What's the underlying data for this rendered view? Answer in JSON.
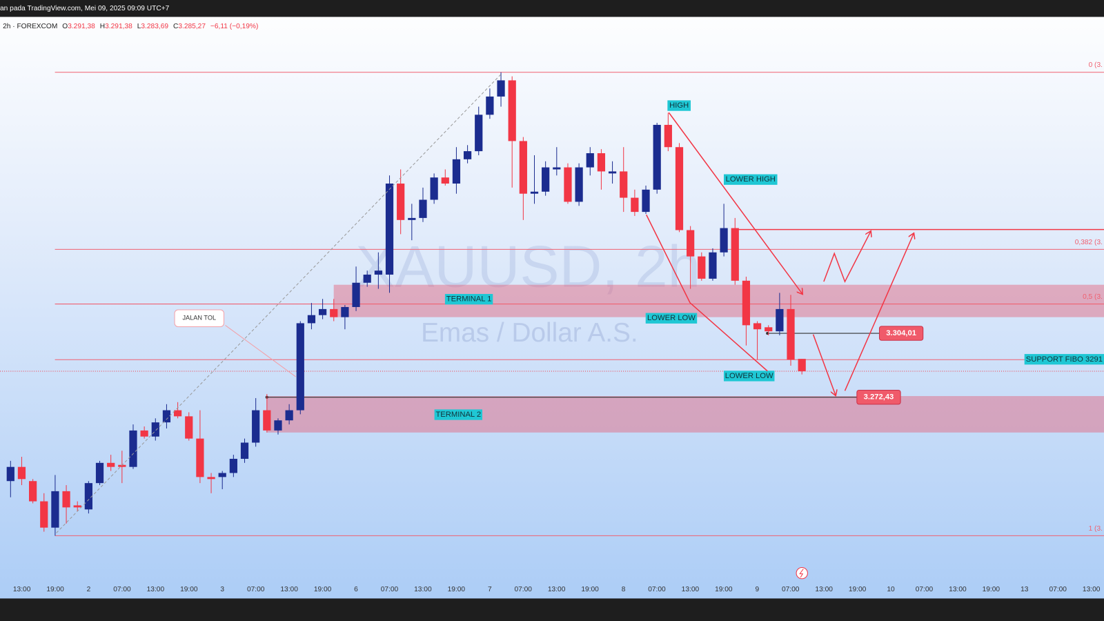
{
  "header": {
    "caption": "an pada TradingView.com, Mei 09, 2025 09:09 UTC+7",
    "symbol": "2h · FOREXCOM",
    "ohlc": [
      {
        "name": "O",
        "text": "3.291,38"
      },
      {
        "name": "H",
        "text": "3.291,38"
      },
      {
        "name": "L",
        "text": "3.283,69"
      },
      {
        "name": "C",
        "text": "3.285,27"
      }
    ],
    "change": "−6,11 (−0,19%)"
  },
  "chart_data": {
    "type": "candlestick",
    "title": "XAUUSD, 2h",
    "subtitle": "Emas / Dollar A.S.",
    "up_color": "#1b2c8f",
    "down_color": "#f23645",
    "ylim": [
      3173,
      3460
    ],
    "categories": [
      "13:00",
      "19:00",
      "2",
      "07:00",
      "13:00",
      "19:00",
      "3",
      "07:00",
      "13:00",
      "19:00",
      "6",
      "07:00",
      "13:00",
      "19:00",
      "7",
      "07:00",
      "13:00",
      "19:00",
      "8",
      "07:00",
      "13:00",
      "19:00",
      "9",
      "07:00",
      "13:00",
      "19:00",
      "10",
      "07:00",
      "13:00",
      "19:00",
      "13",
      "07:00",
      "13:00"
    ],
    "ohlc": [
      [
        3231,
        3241,
        3223,
        3238
      ],
      [
        3238,
        3243,
        3229,
        3232
      ],
      [
        3231,
        3232,
        3220,
        3221
      ],
      [
        3221,
        3225,
        3206,
        3208
      ],
      [
        3208,
        3234,
        3204,
        3226
      ],
      [
        3226,
        3229,
        3210,
        3218
      ],
      [
        3219,
        3221,
        3216,
        3218
      ],
      [
        3217,
        3231,
        3215,
        3230
      ],
      [
        3230,
        3241,
        3229,
        3240
      ],
      [
        3240,
        3244,
        3236,
        3238
      ],
      [
        3239,
        3246,
        3230,
        3238
      ],
      [
        3238,
        3259,
        3237,
        3256
      ],
      [
        3256,
        3258,
        3252,
        3253
      ],
      [
        3253,
        3262,
        3251,
        3260
      ],
      [
        3260,
        3269,
        3257,
        3266
      ],
      [
        3266,
        3270,
        3262,
        3263
      ],
      [
        3263,
        3265,
        3251,
        3252
      ],
      [
        3252,
        3266,
        3230,
        3233
      ],
      [
        3233,
        3235,
        3225,
        3232
      ],
      [
        3233,
        3236,
        3227,
        3235
      ],
      [
        3235,
        3244,
        3233,
        3242
      ],
      [
        3242,
        3252,
        3240,
        3250
      ],
      [
        3250,
        3272,
        3248,
        3266
      ],
      [
        3266,
        3274,
        3255,
        3256
      ],
      [
        3256,
        3262,
        3254,
        3261
      ],
      [
        3261,
        3269,
        3259,
        3266
      ],
      [
        3266,
        3310,
        3264,
        3309
      ],
      [
        3309,
        3319,
        3306,
        3313
      ],
      [
        3313,
        3321,
        3311,
        3316
      ],
      [
        3316,
        3321,
        3310,
        3312
      ],
      [
        3312,
        3318,
        3306,
        3317
      ],
      [
        3317,
        3337,
        3315,
        3329
      ],
      [
        3329,
        3335,
        3327,
        3333
      ],
      [
        3333,
        3344,
        3326,
        3335
      ],
      [
        3333,
        3382,
        3324,
        3378
      ],
      [
        3378,
        3385,
        3353,
        3360
      ],
      [
        3360,
        3368,
        3350,
        3361
      ],
      [
        3361,
        3376,
        3359,
        3370
      ],
      [
        3370,
        3383,
        3368,
        3381
      ],
      [
        3381,
        3385,
        3377,
        3378
      ],
      [
        3378,
        3396,
        3373,
        3390
      ],
      [
        3390,
        3397,
        3388,
        3394
      ],
      [
        3394,
        3416,
        3392,
        3412
      ],
      [
        3412,
        3425,
        3410,
        3421
      ],
      [
        3421,
        3433,
        3416,
        3429
      ],
      [
        3429,
        3431,
        3376,
        3399
      ],
      [
        3399,
        3401,
        3360,
        3373
      ],
      [
        3373,
        3392,
        3368,
        3374
      ],
      [
        3374,
        3389,
        3372,
        3386
      ],
      [
        3385,
        3396,
        3382,
        3386
      ],
      [
        3386,
        3388,
        3368,
        3369
      ],
      [
        3369,
        3388,
        3367,
        3386
      ],
      [
        3386,
        3396,
        3382,
        3393
      ],
      [
        3393,
        3395,
        3375,
        3384
      ],
      [
        3383,
        3389,
        3378,
        3384
      ],
      [
        3384,
        3396,
        3364,
        3371
      ],
      [
        3371,
        3375,
        3362,
        3364
      ],
      [
        3364,
        3377,
        3363,
        3375
      ],
      [
        3375,
        3408,
        3373,
        3407
      ],
      [
        3407,
        3413,
        3394,
        3396
      ],
      [
        3396,
        3398,
        3354,
        3355
      ],
      [
        3355,
        3357,
        3326,
        3342
      ],
      [
        3342,
        3344,
        3330,
        3331
      ],
      [
        3331,
        3346,
        3330,
        3344
      ],
      [
        3344,
        3368,
        3342,
        3356
      ],
      [
        3356,
        3361,
        3328,
        3330
      ],
      [
        3330,
        3332,
        3298,
        3308
      ],
      [
        3309,
        3310,
        3291,
        3306
      ],
      [
        3307,
        3308,
        3303,
        3305
      ],
      [
        3305,
        3324,
        3303,
        3316
      ],
      [
        3316,
        3323,
        3288,
        3291
      ],
      [
        3291.38,
        3291.38,
        3283.69,
        3285.27
      ]
    ],
    "fib_levels": [
      {
        "value": 3433,
        "label": "0 (3."
      },
      {
        "value": 3345.5,
        "label": "0,382 (3."
      },
      {
        "value": 3318.5,
        "label": "0,5 (3."
      },
      {
        "value": 3204,
        "label": "1 (3."
      }
    ],
    "support": {
      "value": 3291,
      "label": "SUPPORT FIBO 3291"
    },
    "zones": [
      {
        "label": "TERMINAL 1",
        "top": 3328,
        "bottom": 3312
      },
      {
        "label": "TERMINAL 2",
        "top": 3273,
        "bottom": 3255
      }
    ],
    "price_tags": [
      {
        "value": 3304.01,
        "label": "3.304,01"
      },
      {
        "value": 3272.43,
        "label": "3.272,43"
      }
    ],
    "annotations": [
      "HIGH",
      "LOWER HIGH",
      "LOWER LOW",
      "LOWER LOW",
      "JALAN TOL"
    ]
  }
}
